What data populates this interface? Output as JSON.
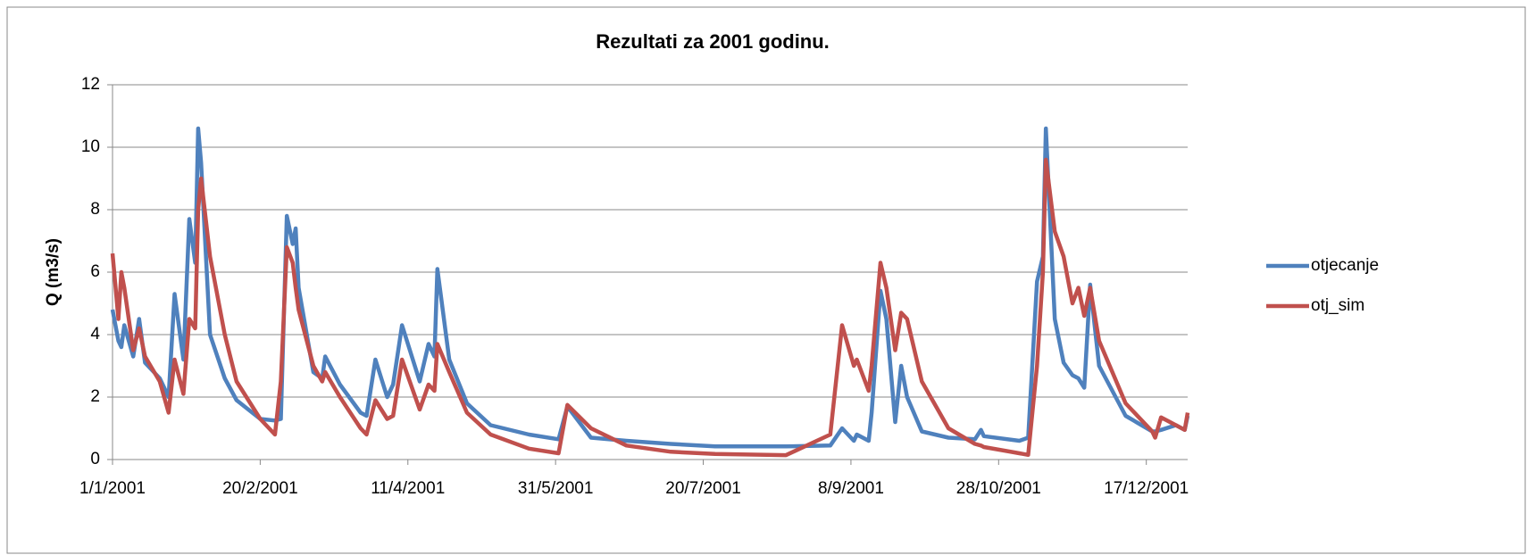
{
  "chart_data": {
    "type": "line",
    "title": "Rezultati za 2001 godinu.",
    "y_label": "Q (m3/s)",
    "x": [
      "1/1/2001",
      "3/1/2001",
      "4/1/2001",
      "5/1/2001",
      "8/1/2001",
      "10/1/2001",
      "12/1/2001",
      "17/1/2001",
      "20/1/2001",
      "22/1/2001",
      "25/1/2001",
      "27/1/2001",
      "29/1/2001",
      "30/1/2001",
      "31/1/2001",
      "3/2/2001",
      "8/2/2001",
      "12/2/2001",
      "20/2/2001",
      "25/2/2001",
      "27/2/2001",
      "1/3/2001",
      "3/3/2001",
      "4/3/2001",
      "5/3/2001",
      "10/3/2001",
      "13/3/2001",
      "14/3/2001",
      "19/3/2001",
      "26/3/2001",
      "28/3/2001",
      "31/3/2001",
      "4/4/2001",
      "6/4/2001",
      "9/4/2001",
      "15/4/2001",
      "18/4/2001",
      "20/4/2001",
      "21/4/2001",
      "25/4/2001",
      "1/5/2001",
      "9/5/2001",
      "22/5/2001",
      "1/6/2001",
      "4/6/2001",
      "12/6/2001",
      "24/6/2001",
      "9/7/2001",
      "24/7/2001",
      "17/8/2001",
      "1/9/2001",
      "5/9/2001",
      "9/9/2001",
      "10/9/2001",
      "14/9/2001",
      "15/9/2001",
      "18/9/2001",
      "20/9/2001",
      "23/9/2001",
      "25/9/2001",
      "27/9/2001",
      "2/10/2001",
      "11/10/2001",
      "20/10/2001",
      "22/10/2001",
      "23/10/2001",
      "4/11/2001",
      "7/11/2001",
      "10/11/2001",
      "12/11/2001",
      "13/11/2001",
      "16/11/2001",
      "19/11/2001",
      "22/11/2001",
      "24/11/2001",
      "26/11/2001",
      "28/11/2001",
      "1/12/2001",
      "10/12/2001",
      "19/12/2001",
      "20/12/2001",
      "22/12/2001",
      "27/12/2001",
      "30/12/2001",
      "31/12/2001"
    ],
    "series": [
      {
        "name": "otjecanje",
        "color": "#4f81bd",
        "values": [
          4.8,
          3.8,
          3.6,
          4.3,
          3.3,
          4.5,
          3.1,
          2.6,
          2.0,
          5.3,
          3.2,
          7.7,
          6.3,
          10.6,
          9.5,
          4.0,
          2.6,
          1.9,
          1.3,
          1.25,
          1.3,
          7.8,
          6.9,
          7.4,
          5.5,
          2.8,
          2.6,
          3.3,
          2.4,
          1.5,
          1.4,
          3.2,
          2.0,
          2.4,
          4.3,
          2.5,
          3.7,
          3.3,
          6.1,
          3.2,
          1.8,
          1.1,
          0.8,
          0.65,
          1.7,
          0.7,
          0.6,
          0.5,
          0.42,
          0.42,
          0.45,
          1.0,
          0.6,
          0.8,
          0.6,
          1.5,
          5.4,
          4.5,
          1.2,
          3.0,
          2.0,
          0.9,
          0.7,
          0.65,
          0.95,
          0.75,
          0.6,
          0.7,
          5.7,
          6.5,
          10.6,
          4.5,
          3.1,
          2.7,
          2.6,
          2.3,
          5.6,
          3.0,
          1.4,
          0.9,
          0.9,
          0.95,
          1.1,
          0.95,
          1.4
        ]
      },
      {
        "name": "otj_sim",
        "color": "#c0504d",
        "values": [
          6.6,
          4.5,
          6.0,
          5.5,
          3.5,
          4.2,
          3.3,
          2.5,
          1.5,
          3.2,
          2.1,
          4.5,
          4.2,
          8.0,
          9.0,
          6.5,
          4.0,
          2.5,
          1.3,
          0.8,
          2.5,
          6.8,
          6.3,
          5.5,
          4.8,
          3.0,
          2.5,
          2.8,
          2.0,
          1.0,
          0.8,
          1.9,
          1.3,
          1.4,
          3.2,
          1.6,
          2.4,
          2.2,
          3.7,
          2.8,
          1.5,
          0.8,
          0.35,
          0.2,
          1.75,
          1.0,
          0.45,
          0.25,
          0.18,
          0.14,
          0.8,
          4.3,
          3.0,
          3.2,
          2.2,
          3.0,
          6.3,
          5.5,
          3.5,
          4.7,
          4.5,
          2.5,
          1.0,
          0.5,
          0.45,
          0.4,
          0.2,
          0.15,
          3.0,
          6.0,
          9.6,
          7.3,
          6.5,
          5.0,
          5.5,
          4.6,
          5.5,
          3.8,
          1.8,
          0.9,
          0.7,
          1.35,
          1.1,
          0.95,
          1.5
        ]
      }
    ],
    "xlim": [
      "1/1/2001",
      "31/12/2001"
    ],
    "xticks": [
      "1/1/2001",
      "20/2/2001",
      "11/4/2001",
      "31/5/2001",
      "20/7/2001",
      "8/9/2001",
      "28/10/2001",
      "17/12/2001"
    ],
    "ylim": [
      0,
      12
    ],
    "yticks": [
      0,
      2,
      4,
      6,
      8,
      10,
      12
    ],
    "grid": true,
    "legend": "right"
  }
}
